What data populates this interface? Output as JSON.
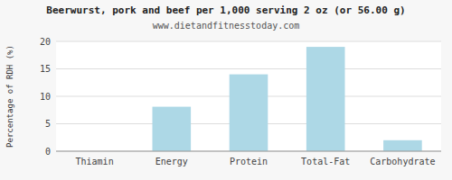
{
  "chart_data": {
    "type": "bar",
    "title": "Beerwurst, pork and beef per 1,000 serving 2 oz (or 56.00 g)",
    "subtitle": "www.dietandfitnesstoday.com",
    "categories": [
      "Thiamin",
      "Energy",
      "Protein",
      "Total-Fat",
      "Carbohydrate"
    ],
    "values": [
      0.0,
      8.1,
      14.0,
      19.0,
      2.0
    ],
    "color": "#add8e6",
    "ylabel": "Percentage of RDH (%)",
    "ylim": [
      0,
      20
    ],
    "yticks": [
      0,
      5,
      10,
      15,
      20
    ],
    "grid": true
  }
}
